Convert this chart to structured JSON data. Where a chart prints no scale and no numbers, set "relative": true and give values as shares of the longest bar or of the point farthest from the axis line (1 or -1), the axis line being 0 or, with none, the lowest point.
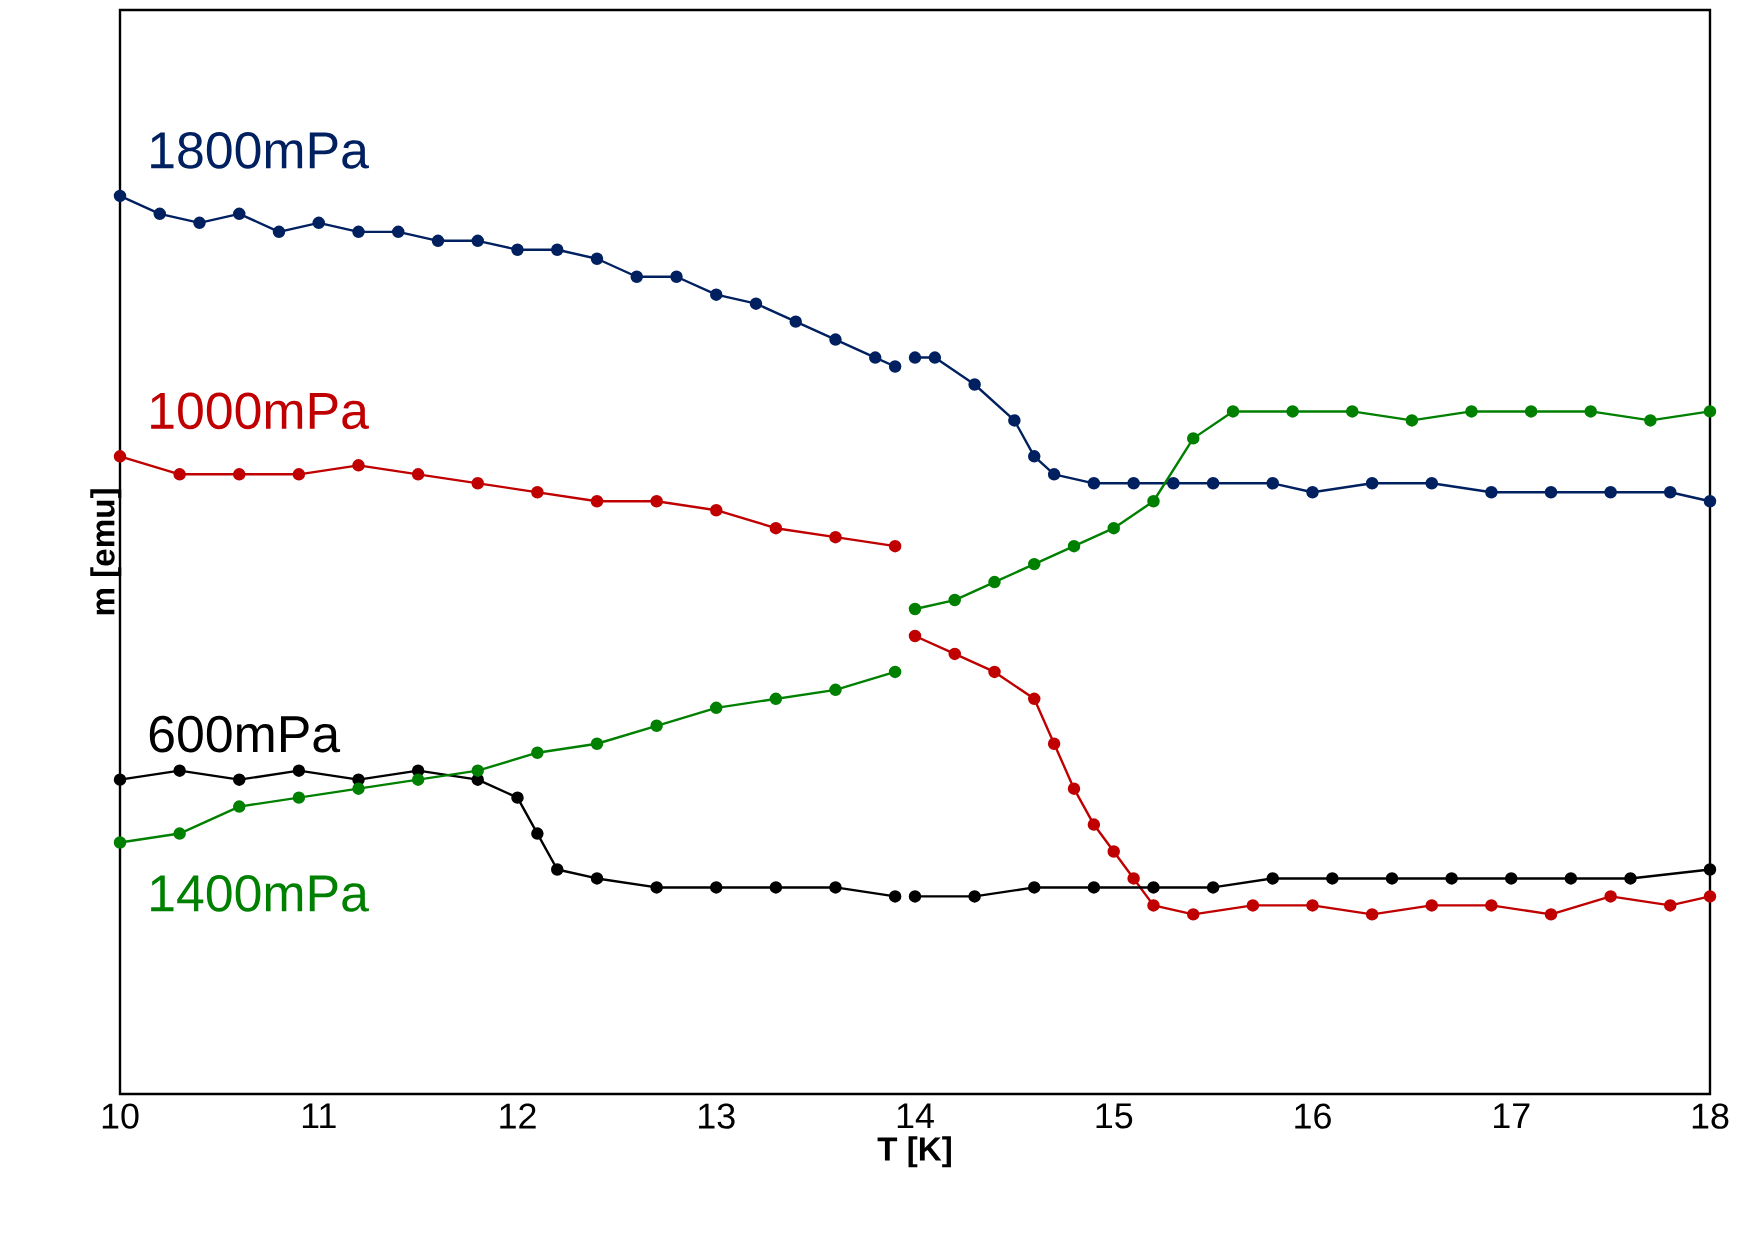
{
  "chart_data": {
    "type": "line",
    "xlabel": "T [K]",
    "ylabel": "m [emu]",
    "relative": true,
    "xlim": [
      10,
      18
    ],
    "xticks": [
      10,
      11,
      12,
      13,
      14,
      15,
      16,
      17,
      18
    ],
    "tick_labels": "x",
    "marker": "circle",
    "line_style": "solid",
    "series": [
      {
        "name": "1800mPa",
        "color": "#002060",
        "x": [
          10.0,
          10.2,
          10.4,
          10.6,
          10.8,
          11.0,
          11.2,
          11.4,
          11.6,
          11.8,
          12.0,
          12.2,
          12.4,
          12.6,
          12.8,
          13.0,
          13.2,
          13.4,
          13.6,
          13.8,
          13.9,
          13.95,
          14.0,
          14.1,
          14.3,
          14.5,
          14.6,
          14.7,
          14.9,
          15.1,
          15.3,
          15.5,
          15.8,
          16.0,
          16.3,
          16.6,
          16.9,
          17.2,
          17.5,
          17.8,
          18.0
        ],
        "values": [
          1.0,
          0.98,
          0.97,
          0.98,
          0.96,
          0.97,
          0.96,
          0.96,
          0.95,
          0.95,
          0.94,
          0.94,
          0.93,
          0.91,
          0.91,
          0.89,
          0.88,
          0.86,
          0.84,
          0.82,
          0.81,
          null,
          0.82,
          0.82,
          0.79,
          0.75,
          0.71,
          0.69,
          0.68,
          0.68,
          0.68,
          0.68,
          0.68,
          0.67,
          0.68,
          0.68,
          0.67,
          0.67,
          0.67,
          0.67,
          0.66
        ]
      },
      {
        "name": "1000mPa",
        "color": "#c00000",
        "x": [
          10.0,
          10.3,
          10.6,
          10.9,
          11.2,
          11.5,
          11.8,
          12.1,
          12.4,
          12.7,
          13.0,
          13.3,
          13.6,
          13.9,
          13.95,
          14.0,
          14.2,
          14.4,
          14.6,
          14.7,
          14.8,
          14.9,
          15.0,
          15.1,
          15.2,
          15.4,
          15.7,
          16.0,
          16.3,
          16.6,
          16.9,
          17.2,
          17.5,
          17.8,
          18.0
        ],
        "values": [
          0.71,
          0.69,
          0.69,
          0.69,
          0.7,
          0.69,
          0.68,
          0.67,
          0.66,
          0.66,
          0.65,
          0.63,
          0.62,
          0.61,
          null,
          0.51,
          0.49,
          0.47,
          0.44,
          0.39,
          0.34,
          0.3,
          0.27,
          0.24,
          0.21,
          0.2,
          0.21,
          0.21,
          0.2,
          0.21,
          0.21,
          0.2,
          0.22,
          0.21,
          0.22
        ]
      },
      {
        "name": "600mPa",
        "color": "#000000",
        "x": [
          10.0,
          10.3,
          10.6,
          10.9,
          11.2,
          11.5,
          11.8,
          12.0,
          12.1,
          12.2,
          12.4,
          12.7,
          13.0,
          13.3,
          13.6,
          13.9,
          13.95,
          14.0,
          14.3,
          14.6,
          14.9,
          15.2,
          15.5,
          15.8,
          16.1,
          16.4,
          16.7,
          17.0,
          17.3,
          17.6,
          18.0
        ],
        "values": [
          0.35,
          0.36,
          0.35,
          0.36,
          0.35,
          0.36,
          0.35,
          0.33,
          0.29,
          0.25,
          0.24,
          0.23,
          0.23,
          0.23,
          0.23,
          0.22,
          null,
          0.22,
          0.22,
          0.23,
          0.23,
          0.23,
          0.23,
          0.24,
          0.24,
          0.24,
          0.24,
          0.24,
          0.24,
          0.24,
          0.25
        ]
      },
      {
        "name": "1400mPa",
        "color": "#008000",
        "x": [
          10.0,
          10.3,
          10.6,
          10.9,
          11.2,
          11.5,
          11.8,
          12.1,
          12.4,
          12.7,
          13.0,
          13.3,
          13.6,
          13.9,
          13.95,
          14.0,
          14.2,
          14.4,
          14.6,
          14.8,
          15.0,
          15.2,
          15.4,
          15.6,
          15.9,
          16.2,
          16.5,
          16.8,
          17.1,
          17.4,
          17.7,
          18.0
        ],
        "values": [
          0.28,
          0.29,
          0.32,
          0.33,
          0.34,
          0.35,
          0.36,
          0.38,
          0.39,
          0.41,
          0.43,
          0.44,
          0.45,
          0.47,
          null,
          0.54,
          0.55,
          0.57,
          0.59,
          0.61,
          0.63,
          0.66,
          0.73,
          0.76,
          0.76,
          0.76,
          0.75,
          0.76,
          0.76,
          0.76,
          0.75,
          0.76
        ]
      }
    ]
  }
}
